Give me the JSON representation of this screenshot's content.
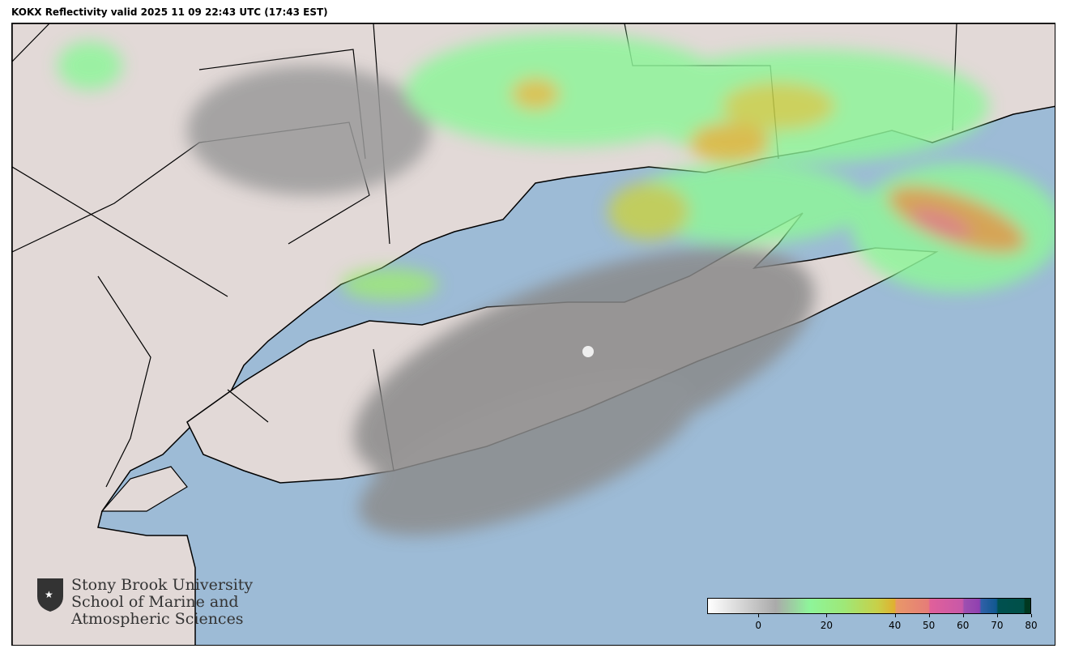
{
  "title": "KOKX Reflectivity valid 2025 11 09 22:43 UTC (17:43 EST)",
  "colors": {
    "ocean": "#9dbbd6",
    "land": "#e2d9d7",
    "border": "#000000"
  },
  "logo": {
    "icon": "stony-brook-shield-icon",
    "lines": [
      "Stony Brook University",
      "School of Marine and",
      "Atmospheric Sciences"
    ]
  },
  "colorbar": {
    "range": [
      -15,
      80
    ],
    "ticks": [
      "0",
      "20",
      "40",
      "50",
      "60",
      "70",
      "80"
    ],
    "tick_values": [
      0,
      20,
      40,
      50,
      60,
      70,
      80
    ],
    "stops": [
      {
        "v": -15,
        "c": "#ffffff"
      },
      {
        "v": 5,
        "c": "#aaaaaa"
      },
      {
        "v": 15,
        "c": "#8ef59a"
      },
      {
        "v": 25,
        "c": "#9ee878"
      },
      {
        "v": 35,
        "c": "#c8d048"
      },
      {
        "v": 40,
        "c": "#e0b030"
      },
      {
        "v": 40.5,
        "c": "#e89868"
      },
      {
        "v": 50,
        "c": "#e67c78"
      },
      {
        "v": 50.5,
        "c": "#e0609a"
      },
      {
        "v": 60,
        "c": "#c858a8"
      },
      {
        "v": 60.5,
        "c": "#9e50b0"
      },
      {
        "v": 65,
        "c": "#9040b0"
      },
      {
        "v": 65.5,
        "c": "#3060a8"
      },
      {
        "v": 70,
        "c": "#105890"
      },
      {
        "v": 70.5,
        "c": "#005050"
      },
      {
        "v": 78,
        "c": "#005048"
      },
      {
        "v": 78.5,
        "c": "#003820"
      },
      {
        "v": 80,
        "c": "#003820"
      }
    ]
  }
}
